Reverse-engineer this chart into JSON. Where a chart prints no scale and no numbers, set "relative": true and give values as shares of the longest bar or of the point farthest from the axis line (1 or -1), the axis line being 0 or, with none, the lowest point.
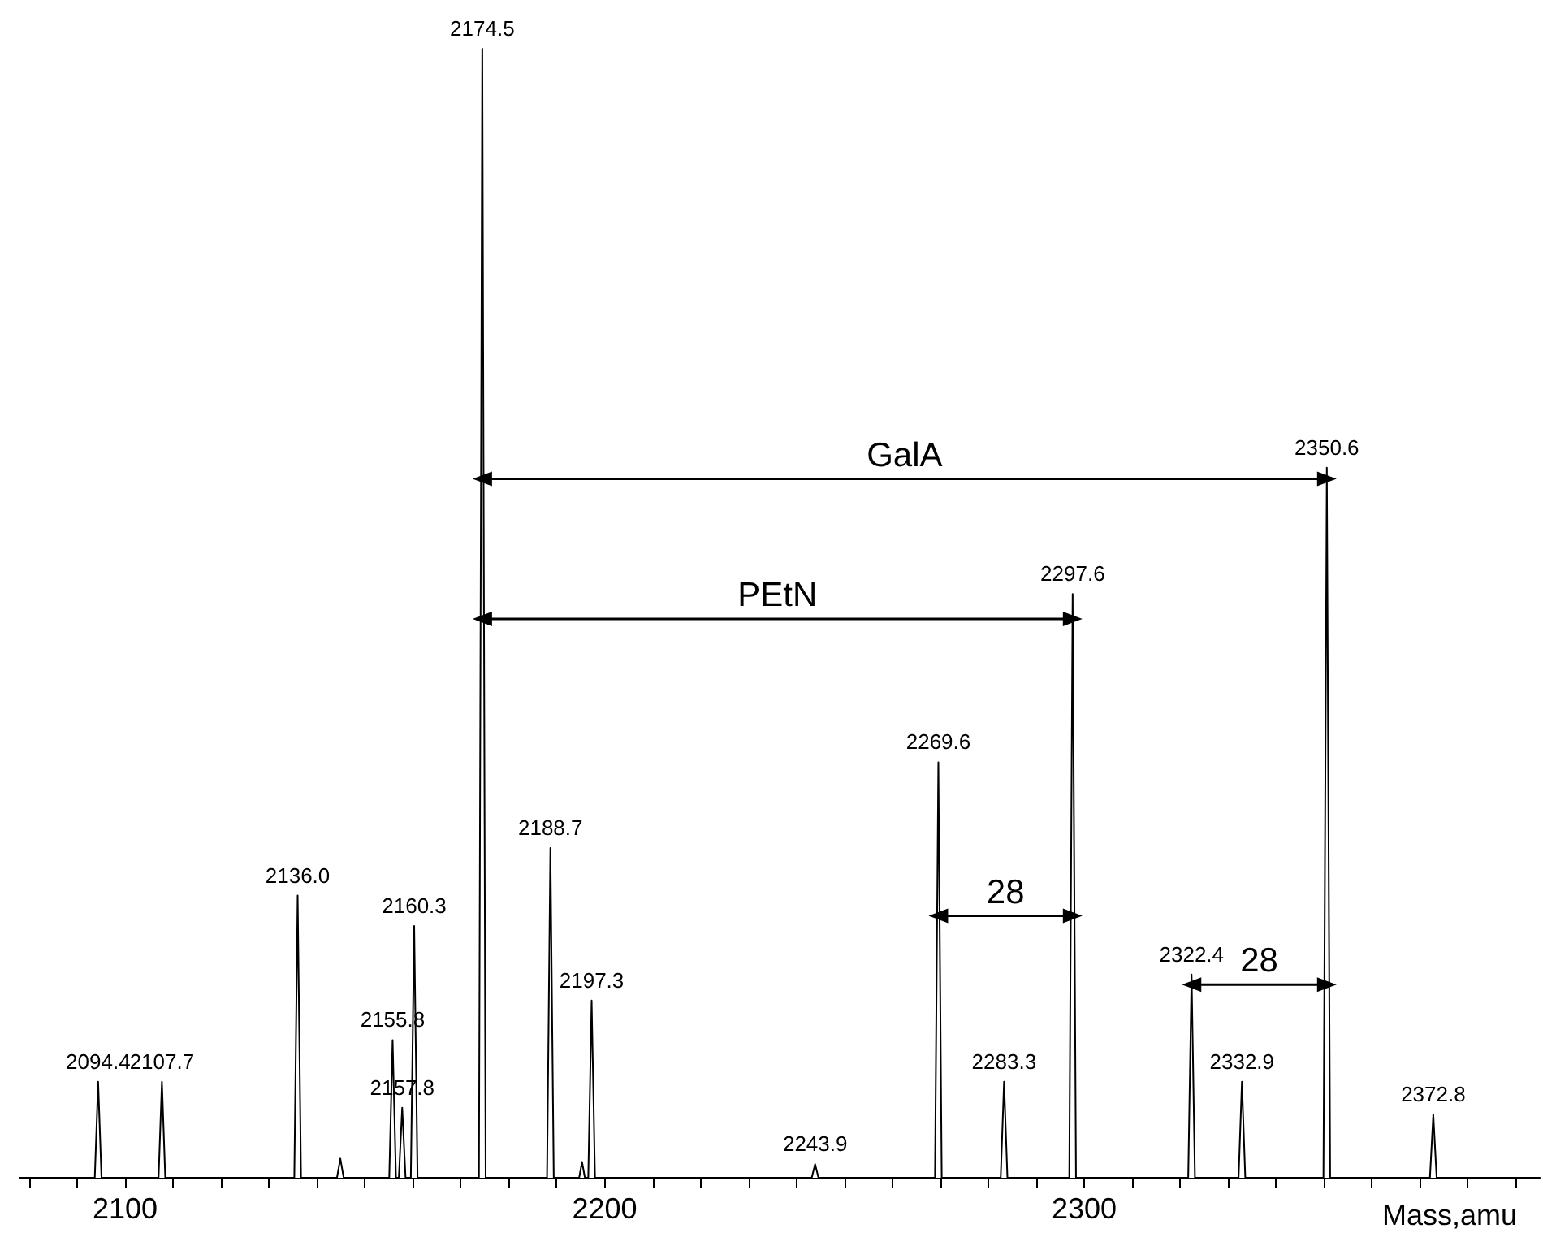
{
  "chart_data": {
    "type": "line",
    "relative": true,
    "xlabel": "Mass,amu",
    "xlim": [
      2078,
      2395
    ],
    "xticks": [
      {
        "value": 2080,
        "label": null
      },
      {
        "value": 2090,
        "label": null
      },
      2100,
      {
        "value": 2110,
        "label": null
      },
      {
        "value": 2120,
        "label": null
      },
      {
        "value": 2130,
        "label": null
      },
      {
        "value": 2140,
        "label": null
      },
      {
        "value": 2150,
        "label": null
      },
      {
        "value": 2160,
        "label": null
      },
      {
        "value": 2170,
        "label": null
      },
      {
        "value": 2180,
        "label": null
      },
      {
        "value": 2190,
        "label": null
      },
      2200,
      {
        "value": 2210,
        "label": null
      },
      {
        "value": 2220,
        "label": null
      },
      {
        "value": 2230,
        "label": null
      },
      {
        "value": 2240,
        "label": null
      },
      {
        "value": 2250,
        "label": null
      },
      {
        "value": 2260,
        "label": null
      },
      {
        "value": 2270,
        "label": null
      },
      {
        "value": 2280,
        "label": null
      },
      {
        "value": 2290,
        "label": null
      },
      2300,
      {
        "value": 2310,
        "label": null
      },
      {
        "value": 2320,
        "label": null
      },
      {
        "value": 2330,
        "label": null
      },
      {
        "value": 2340,
        "label": null
      },
      {
        "value": 2350,
        "label": null
      },
      {
        "value": 2360,
        "label": null
      },
      {
        "value": 2370,
        "label": null
      },
      {
        "value": 2380,
        "label": null
      },
      {
        "value": 2390,
        "label": null
      }
    ],
    "grid": false,
    "marker": "none",
    "line_style": "solid",
    "series": [
      {
        "color": "#000000",
        "x": [
          2078,
          2093.7,
          2094.4,
          2095.1,
          2107.0,
          2107.7,
          2108.4,
          2135.3,
          2136.0,
          2136.7,
          2144.2,
          2144.9,
          2145.6,
          2155.1,
          2155.8,
          2156.5,
          2157.1,
          2157.8,
          2158.5,
          2159.6,
          2160.3,
          2161.0,
          2173.8,
          2174.5,
          2175.2,
          2188.0,
          2188.7,
          2189.4,
          2194.7,
          2195.3,
          2195.9,
          2196.6,
          2197.3,
          2198.0,
          2243.2,
          2243.9,
          2244.6,
          2268.9,
          2269.6,
          2270.3,
          2282.6,
          2283.3,
          2284.0,
          2296.9,
          2297.6,
          2298.3,
          2321.7,
          2322.4,
          2323.1,
          2332.2,
          2332.9,
          2333.6,
          2349.9,
          2350.6,
          2351.3,
          2372.1,
          2372.8,
          2373.5,
          2395
        ],
        "values": [
          0,
          0,
          0.085,
          0,
          0,
          0.085,
          0,
          0,
          0.25,
          0,
          0,
          0.017,
          0,
          0,
          0.122,
          0,
          0,
          0.062,
          0,
          0,
          0.223,
          0,
          0,
          1,
          0,
          0,
          0.292,
          0,
          0,
          0.014,
          0,
          0,
          0.157,
          0,
          0,
          0.012,
          0,
          0,
          0.368,
          0,
          0,
          0.085,
          0,
          0,
          0.517,
          0,
          0,
          0.18,
          0,
          0,
          0.085,
          0,
          0,
          0.629,
          0,
          0,
          0.056,
          0,
          0
        ]
      },
      {
        "name": "GalA",
        "color": "#000000",
        "marker": "triangle",
        "x": [
          2174.5,
          2350.6
        ],
        "values": [
          0.619,
          0.619
        ]
      },
      {
        "name": "PEtN",
        "color": "#000000",
        "marker": "triangle",
        "x": [
          2174.5,
          2297.6
        ],
        "values": [
          0.495,
          0.495
        ]
      },
      {
        "name": "28",
        "color": "#000000",
        "marker": "triangle",
        "x": [
          2269.6,
          2297.6
        ],
        "values": [
          0.232,
          0.232
        ]
      },
      {
        "name": "28",
        "color": "#000000",
        "marker": "triangle",
        "x": [
          2322.4,
          2350.6
        ],
        "values": [
          0.171,
          0.171
        ]
      }
    ],
    "annotations": [
      {
        "text": "2094.4",
        "x": 2094.4,
        "y": 0.085
      },
      {
        "text": "2107.7",
        "x": 2107.7,
        "y": 0.085
      },
      {
        "text": "2136.0",
        "x": 2136.0,
        "y": 0.25
      },
      {
        "text": "2155.8",
        "x": 2155.8,
        "y": 0.122
      },
      {
        "text": "2157.8",
        "x": 2157.8,
        "y": 0.062
      },
      {
        "text": "2160.3",
        "x": 2160.3,
        "y": 0.223
      },
      {
        "text": "2174.5",
        "x": 2174.5,
        "y": 1
      },
      {
        "text": "2188.7",
        "x": 2188.7,
        "y": 0.292
      },
      {
        "text": "2197.3",
        "x": 2197.3,
        "y": 0.157
      },
      {
        "text": "2243.9",
        "x": 2243.9,
        "y": 0.012
      },
      {
        "text": "2269.6",
        "x": 2269.6,
        "y": 0.368
      },
      {
        "text": "2283.3",
        "x": 2283.3,
        "y": 0.085
      },
      {
        "text": "2297.6",
        "x": 2297.6,
        "y": 0.517
      },
      {
        "text": "2322.4",
        "x": 2322.4,
        "y": 0.18
      },
      {
        "text": "2332.9",
        "x": 2332.9,
        "y": 0.085
      },
      {
        "text": "2350.6",
        "x": 2350.6,
        "y": 0.629
      },
      {
        "text": "2372.8",
        "x": 2372.8,
        "y": 0.056
      }
    ]
  }
}
